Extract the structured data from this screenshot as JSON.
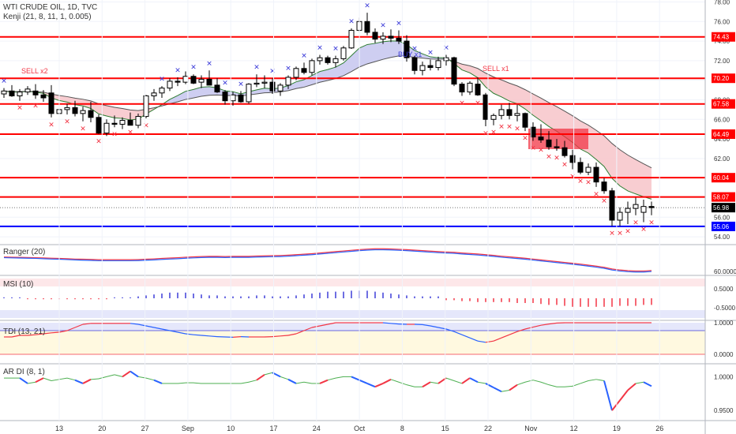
{
  "header": {
    "symbol": "WTI CRUDE OIL, 1D, TVC",
    "indicator": "Kenji (21, 8, 11, 1, 0.005)"
  },
  "signals": {
    "sell_x2": "SELL x2",
    "buy_x1": "BUY x1",
    "sell_x1": "SELL x1"
  },
  "panes": {
    "ranger": "Ranger (20)",
    "msi": "MSI (10)",
    "tdi": "TDI (13, 21)",
    "ardi": "AR DI (8, 1)"
  },
  "colors": {
    "level_line": "#ff0000",
    "support_line": "#0000ff",
    "bull_candle": "#ffffff",
    "bear_candle": "#000000",
    "marker_blue": "#3d3dd9",
    "marker_red": "#f23645",
    "cloud_blue": "#c9c9ef",
    "cloud_red": "#f7c8cc"
  },
  "chart_data": [
    {
      "type": "candlestick",
      "title": "WTI CRUDE OIL, 1D, TVC",
      "y_axis_ticks": [
        "78.00",
        "76.00",
        "74.00",
        "72.00",
        "70.00",
        "68.00",
        "66.00",
        "64.00",
        "62.00",
        "60.00",
        "58.00",
        "56.00",
        "54.00"
      ],
      "ylim": [
        53.2,
        78.2
      ],
      "x_tick_labels": [
        "13",
        "20",
        "27",
        "Sep",
        "10",
        "17",
        "24",
        "Oct",
        "8",
        "15",
        "22",
        "Nov",
        "12",
        "19",
        "26"
      ],
      "horizontal_levels": [
        {
          "label": "74.43",
          "value": 74.43,
          "color": "red"
        },
        {
          "label": "70.20",
          "value": 70.2,
          "color": "red"
        },
        {
          "label": "67.58",
          "value": 67.58,
          "color": "red"
        },
        {
          "label": "64.49",
          "value": 64.49,
          "color": "red"
        },
        {
          "label": "60.04",
          "value": 60.04,
          "color": "red"
        },
        {
          "label": "58.07",
          "value": 58.07,
          "color": "red"
        },
        {
          "label": "55.06",
          "value": 55.06,
          "color": "blue"
        }
      ],
      "last_price": {
        "label": "56.98",
        "value": 56.98
      },
      "signal_labels": [
        "SELL x2",
        "BUY x1",
        "SELL x1"
      ],
      "candles": [
        [
          68.6,
          69.2,
          68.2,
          68.9
        ],
        [
          68.9,
          69.5,
          68.3,
          68.4
        ],
        [
          68.4,
          69.1,
          67.9,
          68.8
        ],
        [
          68.8,
          69.4,
          68.5,
          69.1
        ],
        [
          68.9,
          69.6,
          68.1,
          68.5
        ],
        [
          68.5,
          69.0,
          67.8,
          68.2
        ],
        [
          68.7,
          69.5,
          66.2,
          66.6
        ],
        [
          66.6,
          67.4,
          66.0,
          67.0
        ],
        [
          67.0,
          67.6,
          66.5,
          67.2
        ],
        [
          67.2,
          67.9,
          66.3,
          66.6
        ],
        [
          66.6,
          67.3,
          65.8,
          66.9
        ],
        [
          66.9,
          67.8,
          65.7,
          66.2
        ],
        [
          66.2,
          66.5,
          64.5,
          64.6
        ],
        [
          64.6,
          66.0,
          64.3,
          65.6
        ],
        [
          65.6,
          66.4,
          65.2,
          65.5
        ],
        [
          65.5,
          66.2,
          65.0,
          65.9
        ],
        [
          65.9,
          66.7,
          65.4,
          65.4
        ],
        [
          65.4,
          66.6,
          65.1,
          66.3
        ],
        [
          66.3,
          68.5,
          66.1,
          68.4
        ],
        [
          68.4,
          69.1,
          67.9,
          68.7
        ],
        [
          68.7,
          69.4,
          68.2,
          69.2
        ],
        [
          69.2,
          70.2,
          68.9,
          69.9
        ],
        [
          69.9,
          70.3,
          69.4,
          69.8
        ],
        [
          69.8,
          70.9,
          69.6,
          70.4
        ],
        [
          70.4,
          70.6,
          69.6,
          69.7
        ],
        [
          69.8,
          70.5,
          69.2,
          70.1
        ],
        [
          70.1,
          71.0,
          69.5,
          69.5
        ],
        [
          69.5,
          70.2,
          68.7,
          68.8
        ],
        [
          68.8,
          69.0,
          67.5,
          67.9
        ],
        [
          67.9,
          68.8,
          67.4,
          68.5
        ],
        [
          68.5,
          68.9,
          67.7,
          67.8
        ],
        [
          67.8,
          69.7,
          67.6,
          69.6
        ],
        [
          69.6,
          70.6,
          69.3,
          69.7
        ],
        [
          69.7,
          70.5,
          69.2,
          69.8
        ],
        [
          69.8,
          70.2,
          68.6,
          68.9
        ],
        [
          68.9,
          69.7,
          68.4,
          69.5
        ],
        [
          69.5,
          70.5,
          69.1,
          70.3
        ],
        [
          70.3,
          71.4,
          70.0,
          71.2
        ],
        [
          71.2,
          71.8,
          70.6,
          70.8
        ],
        [
          70.8,
          72.2,
          70.5,
          72.0
        ],
        [
          72.0,
          72.6,
          71.6,
          72.3
        ],
        [
          72.3,
          72.5,
          71.6,
          71.8
        ],
        [
          71.8,
          72.5,
          71.3,
          72.2
        ],
        [
          72.2,
          73.5,
          72.0,
          73.3
        ],
        [
          73.3,
          75.3,
          73.2,
          75.1
        ],
        [
          75.1,
          76.4,
          74.9,
          76.0
        ],
        [
          76.0,
          76.9,
          74.6,
          74.9
        ],
        [
          74.9,
          75.3,
          73.8,
          74.2
        ],
        [
          74.2,
          74.9,
          73.7,
          74.5
        ],
        [
          74.5,
          75.2,
          73.9,
          74.3
        ],
        [
          74.3,
          75.1,
          73.7,
          74.0
        ],
        [
          74.0,
          74.6,
          71.9,
          72.3
        ],
        [
          72.3,
          72.5,
          70.6,
          71.0
        ],
        [
          71.0,
          71.9,
          70.5,
          71.5
        ],
        [
          71.5,
          72.1,
          71.0,
          71.3
        ],
        [
          71.3,
          72.4,
          71.0,
          72.0
        ],
        [
          72.0,
          72.6,
          71.5,
          72.3
        ],
        [
          72.3,
          72.4,
          69.4,
          69.6
        ],
        [
          69.6,
          69.8,
          68.4,
          68.8
        ],
        [
          68.8,
          69.9,
          68.5,
          69.7
        ],
        [
          69.6,
          70.3,
          68.4,
          68.5
        ],
        [
          68.5,
          68.7,
          65.3,
          66.0
        ],
        [
          66.0,
          66.6,
          65.4,
          66.4
        ],
        [
          66.4,
          67.5,
          66.0,
          67.0
        ],
        [
          67.0,
          67.7,
          66.0,
          66.4
        ],
        [
          66.4,
          67.5,
          65.8,
          66.6
        ],
        [
          66.6,
          66.7,
          64.8,
          65.2
        ],
        [
          65.2,
          65.7,
          63.8,
          64.2
        ],
        [
          64.2,
          65.5,
          63.6,
          63.9
        ],
        [
          63.9,
          64.8,
          62.9,
          63.2
        ],
        [
          63.2,
          64.0,
          62.8,
          63.1
        ],
        [
          63.1,
          63.8,
          62.1,
          62.3
        ],
        [
          62.3,
          62.9,
          60.9,
          61.6
        ],
        [
          61.6,
          62.1,
          60.4,
          60.6
        ],
        [
          60.6,
          61.5,
          60.3,
          61.1
        ],
        [
          61.1,
          61.6,
          59.1,
          59.6
        ],
        [
          59.6,
          60.0,
          58.4,
          58.7
        ],
        [
          58.7,
          59.0,
          55.1,
          55.7
        ],
        [
          55.7,
          57.0,
          55.1,
          56.5
        ],
        [
          56.5,
          57.6,
          55.3,
          56.9
        ],
        [
          56.9,
          58.0,
          56.2,
          57.3
        ],
        [
          56.5,
          57.8,
          55.5,
          57.1
        ],
        [
          57.1,
          57.6,
          56.2,
          56.98
        ]
      ]
    },
    {
      "type": "line",
      "title": "Ranger (20)",
      "y_axis_ticks": [
        "60.0000"
      ],
      "series": [
        {
          "color": "red",
          "values": [
            68.6,
            68.5,
            68.4,
            68.3,
            68.2,
            68.1,
            67.9,
            67.8,
            67.6,
            67.4,
            67.3,
            67.2,
            67.0,
            67.0,
            67.0,
            67.0,
            67.0,
            67.1,
            67.3,
            67.5,
            67.8,
            68.0,
            68.2,
            68.5,
            68.7,
            68.9,
            69.0,
            69.0,
            68.9,
            69.0,
            69.0,
            69.0,
            69.2,
            69.3,
            69.4,
            69.5,
            69.7,
            70.0,
            70.3,
            70.6,
            71.0,
            71.4,
            71.8,
            72.2,
            72.6,
            73.0,
            73.3,
            73.5,
            73.5,
            73.4,
            73.2,
            73.0,
            72.7,
            72.4,
            72.1,
            71.8,
            71.6,
            71.4,
            71.0,
            70.7,
            70.4,
            70.0,
            69.6,
            69.1,
            68.7,
            68.3,
            67.9,
            67.4,
            66.9,
            66.4,
            65.9,
            65.4,
            64.9,
            64.4,
            63.8,
            63.2,
            62.5,
            61.5,
            60.9,
            60.5,
            60.3,
            60.3,
            60.6
          ]
        },
        {
          "color": "blue",
          "values": [
            68.2,
            68.1,
            68.0,
            67.9,
            67.8,
            67.6,
            67.4,
            67.3,
            67.1,
            66.9,
            66.7,
            66.6,
            66.4,
            66.4,
            66.4,
            66.4,
            66.4,
            66.5,
            66.7,
            66.9,
            67.2,
            67.4,
            67.6,
            67.9,
            68.1,
            68.3,
            68.4,
            68.4,
            68.3,
            68.4,
            68.4,
            68.4,
            68.6,
            68.7,
            68.8,
            68.9,
            69.1,
            69.4,
            69.7,
            70.0,
            70.4,
            70.8,
            71.2,
            71.6,
            72.0,
            72.4,
            72.7,
            72.9,
            72.9,
            72.8,
            72.6,
            72.4,
            72.1,
            71.8,
            71.5,
            71.2,
            71.0,
            70.8,
            70.4,
            70.1,
            69.8,
            69.4,
            69.0,
            68.5,
            68.1,
            67.7,
            67.3,
            66.8,
            66.3,
            65.8,
            65.3,
            64.8,
            64.3,
            63.8,
            63.2,
            62.6,
            61.9,
            60.9,
            60.3,
            59.9,
            59.7,
            59.7,
            60.0
          ]
        }
      ]
    },
    {
      "type": "bar",
      "title": "MSI (10)",
      "y_axis_ticks": [
        "0.5000",
        "-0.5000"
      ],
      "ylim": [
        -1,
        1
      ],
      "values": [
        0.05,
        0.05,
        0.05,
        -0.05,
        -0.05,
        -0.05,
        -0.05,
        -0.05,
        -0.05,
        -0.05,
        -0.05,
        -0.05,
        -0.05,
        -0.05,
        0.05,
        0.05,
        0.05,
        0.1,
        0.15,
        0.2,
        0.25,
        0.3,
        0.3,
        0.3,
        0.25,
        0.2,
        0.15,
        0.15,
        0.1,
        0.1,
        0.1,
        0.1,
        0.15,
        0.15,
        0.1,
        0.1,
        0.1,
        0.15,
        0.2,
        0.25,
        0.3,
        0.35,
        0.35,
        0.35,
        0.4,
        0.4,
        0.4,
        0.35,
        0.3,
        0.25,
        0.2,
        0.15,
        0.1,
        0.1,
        0.1,
        0.1,
        -0.1,
        -0.1,
        -0.15,
        -0.15,
        -0.2,
        -0.2,
        -0.2,
        -0.2,
        -0.2,
        -0.25,
        -0.25,
        -0.25,
        -0.3,
        -0.35,
        -0.35,
        -0.4,
        -0.45,
        -0.45,
        -0.45,
        -0.45,
        -0.45,
        -0.45,
        -0.4,
        -0.4,
        -0.4,
        -0.35,
        -0.35
      ]
    },
    {
      "type": "line",
      "title": "TDI (13, 21)",
      "y_axis_ticks": [
        "1.0000",
        "0.0000"
      ],
      "ylim": [
        -0.3,
        1.05
      ],
      "values": [
        0.55,
        0.55,
        0.6,
        0.6,
        0.62,
        0.65,
        0.68,
        0.7,
        0.75,
        0.85,
        0.95,
        0.98,
        0.98,
        0.98,
        0.98,
        0.98,
        0.98,
        0.95,
        0.9,
        0.85,
        0.8,
        0.75,
        0.7,
        0.65,
        0.62,
        0.6,
        0.58,
        0.56,
        0.55,
        0.54,
        0.56,
        0.55,
        0.55,
        0.55,
        0.56,
        0.58,
        0.6,
        0.65,
        0.75,
        0.85,
        0.9,
        0.95,
        1.0,
        1.0,
        1.0,
        1.0,
        1.0,
        1.0,
        1.0,
        0.98,
        0.96,
        0.95,
        0.95,
        0.94,
        0.9,
        0.85,
        0.8,
        0.72,
        0.62,
        0.52,
        0.42,
        0.38,
        0.42,
        0.52,
        0.62,
        0.72,
        0.8,
        0.86,
        0.92,
        0.96,
        0.99,
        1.0,
        1.0,
        1.0,
        1.0,
        1.0,
        1.0,
        1.0,
        1.0,
        1.0,
        1.0,
        1.0,
        1.0
      ]
    },
    {
      "type": "line",
      "title": "AR DI (8, 1)",
      "y_axis_ticks": [
        "1.0000",
        "0.9500"
      ],
      "ylim": [
        0.935,
        1.018
      ],
      "values": [
        0.998,
        0.998,
        0.998,
        0.99,
        0.992,
        0.998,
        0.994,
        0.996,
        0.998,
        0.995,
        0.99,
        0.996,
        0.997,
        1.0,
        1.003,
        1.0,
        1.008,
        1.0,
        0.998,
        0.995,
        0.99,
        0.99,
        0.99,
        0.991,
        0.991,
        0.99,
        0.99,
        0.99,
        0.99,
        0.99,
        0.99,
        0.992,
        0.995,
        1.003,
        1.006,
        1.0,
        0.996,
        0.99,
        0.992,
        0.99,
        0.99,
        0.995,
        0.998,
        1.0,
        1.0,
        0.995,
        0.99,
        0.985,
        0.99,
        0.996,
        0.992,
        0.988,
        0.985,
        0.985,
        0.992,
        0.99,
        0.998,
        0.994,
        0.99,
        0.998,
        0.992,
        0.99,
        0.984,
        0.978,
        0.98,
        0.988,
        0.992,
        0.995,
        0.992,
        0.988,
        0.985,
        0.985,
        0.986,
        0.99,
        0.994,
        0.996,
        0.994,
        0.95,
        0.965,
        0.98,
        0.99,
        0.992,
        0.986
      ]
    }
  ]
}
